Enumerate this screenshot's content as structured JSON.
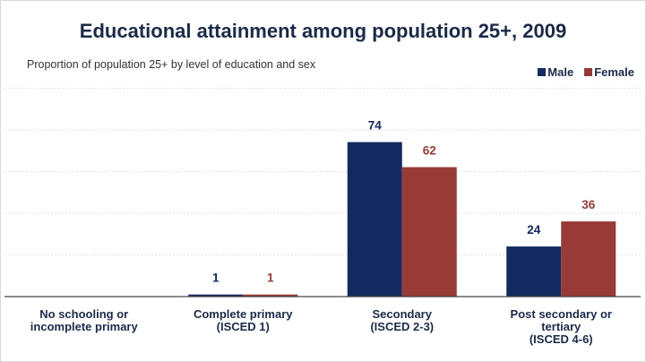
{
  "chart_data": {
    "type": "bar",
    "title": "Educational attainment among population 25+, 2009",
    "subtitle": "Proportion of population 25+ by level of education and sex",
    "categories": [
      [
        "No schooling or",
        "incomplete primary"
      ],
      [
        "Complete primary",
        "(ISCED 1)"
      ],
      [
        "Secondary",
        "(ISCED 2-3)"
      ],
      [
        "Post secondary or",
        "tertiary",
        "(ISCED 4-6)"
      ]
    ],
    "series": [
      {
        "name": "Male",
        "color": "#132a60",
        "values": [
          null,
          1,
          74,
          24
        ]
      },
      {
        "name": "Female",
        "color": "#983a36",
        "values": [
          null,
          1,
          62,
          36
        ]
      }
    ],
    "ylim": [
      0,
      100
    ],
    "grid": true,
    "legend_position": "top-right"
  }
}
